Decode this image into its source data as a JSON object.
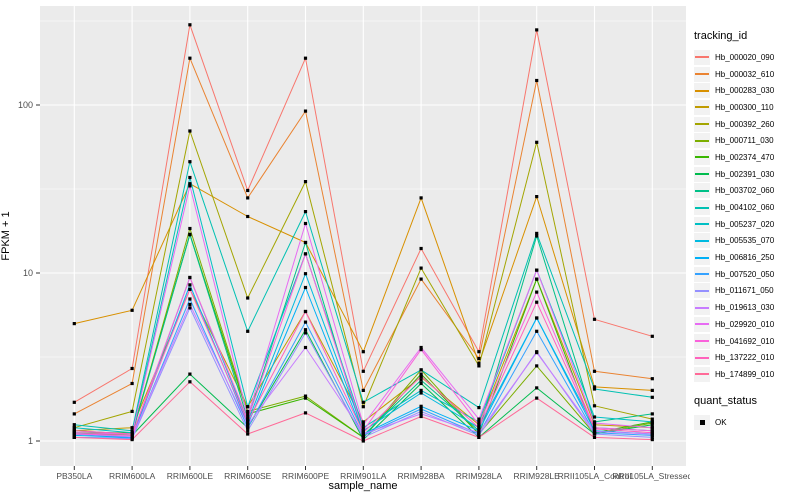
{
  "chart_data": {
    "type": "line",
    "title": "",
    "xlabel": "sample_name",
    "ylabel": "FPKM + 1",
    "y_scale": "log10",
    "ylim": [
      1,
      400
    ],
    "grid": "major-and-minor-white-on-gray",
    "legend_position": "right",
    "panel_bg": "#EBEBEB",
    "gridline_color": "#FFFFFF",
    "point_color": "#000000",
    "point_shape": "square",
    "y_ticks": [
      {
        "label": "1",
        "value": 1
      },
      {
        "label": "10",
        "value": 10
      },
      {
        "label": "100",
        "value": 100
      }
    ],
    "y_minor_ticks": [
      3.162,
      31.62,
      316.2
    ],
    "categories": [
      "PB350LA",
      "RRIM600LA",
      "RRIM600LE",
      "RRIM600SE",
      "RRIM600PE",
      "RRIM901LA",
      "RRIM928BA",
      "RRIM928LA",
      "RRIM928LE",
      "RRII105LA_Control",
      "RRII105LA_Stressed"
    ],
    "series": [
      {
        "name": "Hb_000020_090",
        "color": "#F8766D",
        "values": [
          1.7,
          2.7,
          300,
          31,
          190,
          2.6,
          14,
          3.4,
          280,
          5.3,
          4.2
        ]
      },
      {
        "name": "Hb_000032_610",
        "color": "#EA8331",
        "values": [
          1.45,
          2.2,
          190,
          28,
          92,
          2.0,
          9.2,
          3.1,
          140,
          2.6,
          2.35
        ]
      },
      {
        "name": "Hb_000283_030",
        "color": "#D89000",
        "values": [
          5.0,
          6.0,
          34,
          21.7,
          15.2,
          3.4,
          28,
          2.9,
          28.5,
          2.1,
          2.0
        ]
      },
      {
        "name": "Hb_000300_110",
        "color": "#C09B00",
        "values": [
          1.15,
          1.2,
          8.0,
          1.6,
          5.9,
          1.3,
          2.4,
          1.25,
          9.2,
          1.25,
          1.2
        ]
      },
      {
        "name": "Hb_000392_260",
        "color": "#A3A500",
        "values": [
          1.2,
          1.5,
          70,
          7.1,
          35,
          1.6,
          10.7,
          2.8,
          60,
          1.62,
          1.35
        ]
      },
      {
        "name": "Hb_000711_030",
        "color": "#7CAE00",
        "values": [
          1.1,
          1.1,
          18.4,
          1.5,
          1.85,
          1.05,
          2.65,
          1.1,
          2.8,
          1.1,
          1.28
        ]
      },
      {
        "name": "Hb_002374_470",
        "color": "#39B600",
        "values": [
          1.12,
          1.12,
          17,
          1.45,
          1.8,
          1.05,
          2.5,
          1.1,
          9.2,
          1.12,
          1.3
        ]
      },
      {
        "name": "Hb_002391_030",
        "color": "#00BB4E",
        "values": [
          1.1,
          1.08,
          2.5,
          1.2,
          4.6,
          1.02,
          2.2,
          1.05,
          2.07,
          1.1,
          1.25
        ]
      },
      {
        "name": "Hb_003702_060",
        "color": "#00C087",
        "values": [
          1.15,
          1.1,
          16.9,
          1.35,
          15.2,
          1.08,
          2.3,
          1.15,
          16.6,
          1.3,
          1.45
        ]
      },
      {
        "name": "Hb_004102_060",
        "color": "#00C0B2",
        "values": [
          1.25,
          1.15,
          46,
          4.5,
          23.2,
          1.7,
          2.65,
          1.58,
          17.2,
          2.04,
          1.82
        ]
      },
      {
        "name": "Hb_005237_020",
        "color": "#00BFC4",
        "values": [
          1.2,
          1.12,
          37,
          1.6,
          13,
          1.2,
          2.0,
          1.3,
          10.4,
          1.39,
          1.3
        ]
      },
      {
        "name": "Hb_005535_070",
        "color": "#00BAE0",
        "values": [
          1.1,
          1.05,
          9.4,
          1.3,
          9.9,
          1.15,
          1.93,
          1.2,
          5.4,
          1.2,
          1.15
        ]
      },
      {
        "name": "Hb_006816_250",
        "color": "#00B0F6",
        "values": [
          1.08,
          1.05,
          8.5,
          1.25,
          8.2,
          1.1,
          1.61,
          1.15,
          5.4,
          1.15,
          1.1
        ]
      },
      {
        "name": "Hb_007520_050",
        "color": "#35A2FF",
        "values": [
          1.05,
          1.04,
          7.0,
          1.2,
          5.1,
          1.08,
          1.55,
          1.1,
          4.5,
          1.12,
          1.08
        ]
      },
      {
        "name": "Hb_011671_050",
        "color": "#9590FF",
        "values": [
          1.05,
          1.03,
          6.2,
          1.15,
          4.4,
          1.05,
          1.5,
          1.08,
          3.4,
          1.1,
          1.05
        ]
      },
      {
        "name": "Hb_019613_030",
        "color": "#C77CFF",
        "values": [
          1.1,
          1.06,
          6.5,
          1.25,
          3.6,
          1.1,
          1.45,
          1.12,
          3.36,
          1.14,
          1.1
        ]
      },
      {
        "name": "Hb_029920_010",
        "color": "#E76BF3",
        "values": [
          1.12,
          1.1,
          33,
          1.4,
          19.7,
          1.25,
          3.6,
          1.35,
          10.4,
          1.28,
          1.2
        ]
      },
      {
        "name": "Hb_041692_010",
        "color": "#FA62DB",
        "values": [
          1.1,
          1.08,
          9.4,
          1.35,
          13,
          1.15,
          3.5,
          1.25,
          7.7,
          1.2,
          1.15
        ]
      },
      {
        "name": "Hb_137222_010",
        "color": "#FF62BC",
        "values": [
          1.15,
          1.1,
          8.0,
          1.3,
          5.9,
          1.12,
          2.43,
          1.2,
          6.7,
          1.18,
          1.12
        ]
      },
      {
        "name": "Hb_174899_010",
        "color": "#FF6A98",
        "values": [
          1.05,
          1.02,
          2.25,
          1.1,
          1.47,
          1.0,
          1.4,
          1.05,
          1.8,
          1.05,
          1.02
        ]
      }
    ],
    "legend": {
      "color_title": "tracking_id",
      "shape_title": "quant_status",
      "shape_items": [
        {
          "label": "OK",
          "shape": "filled-square"
        }
      ]
    }
  }
}
